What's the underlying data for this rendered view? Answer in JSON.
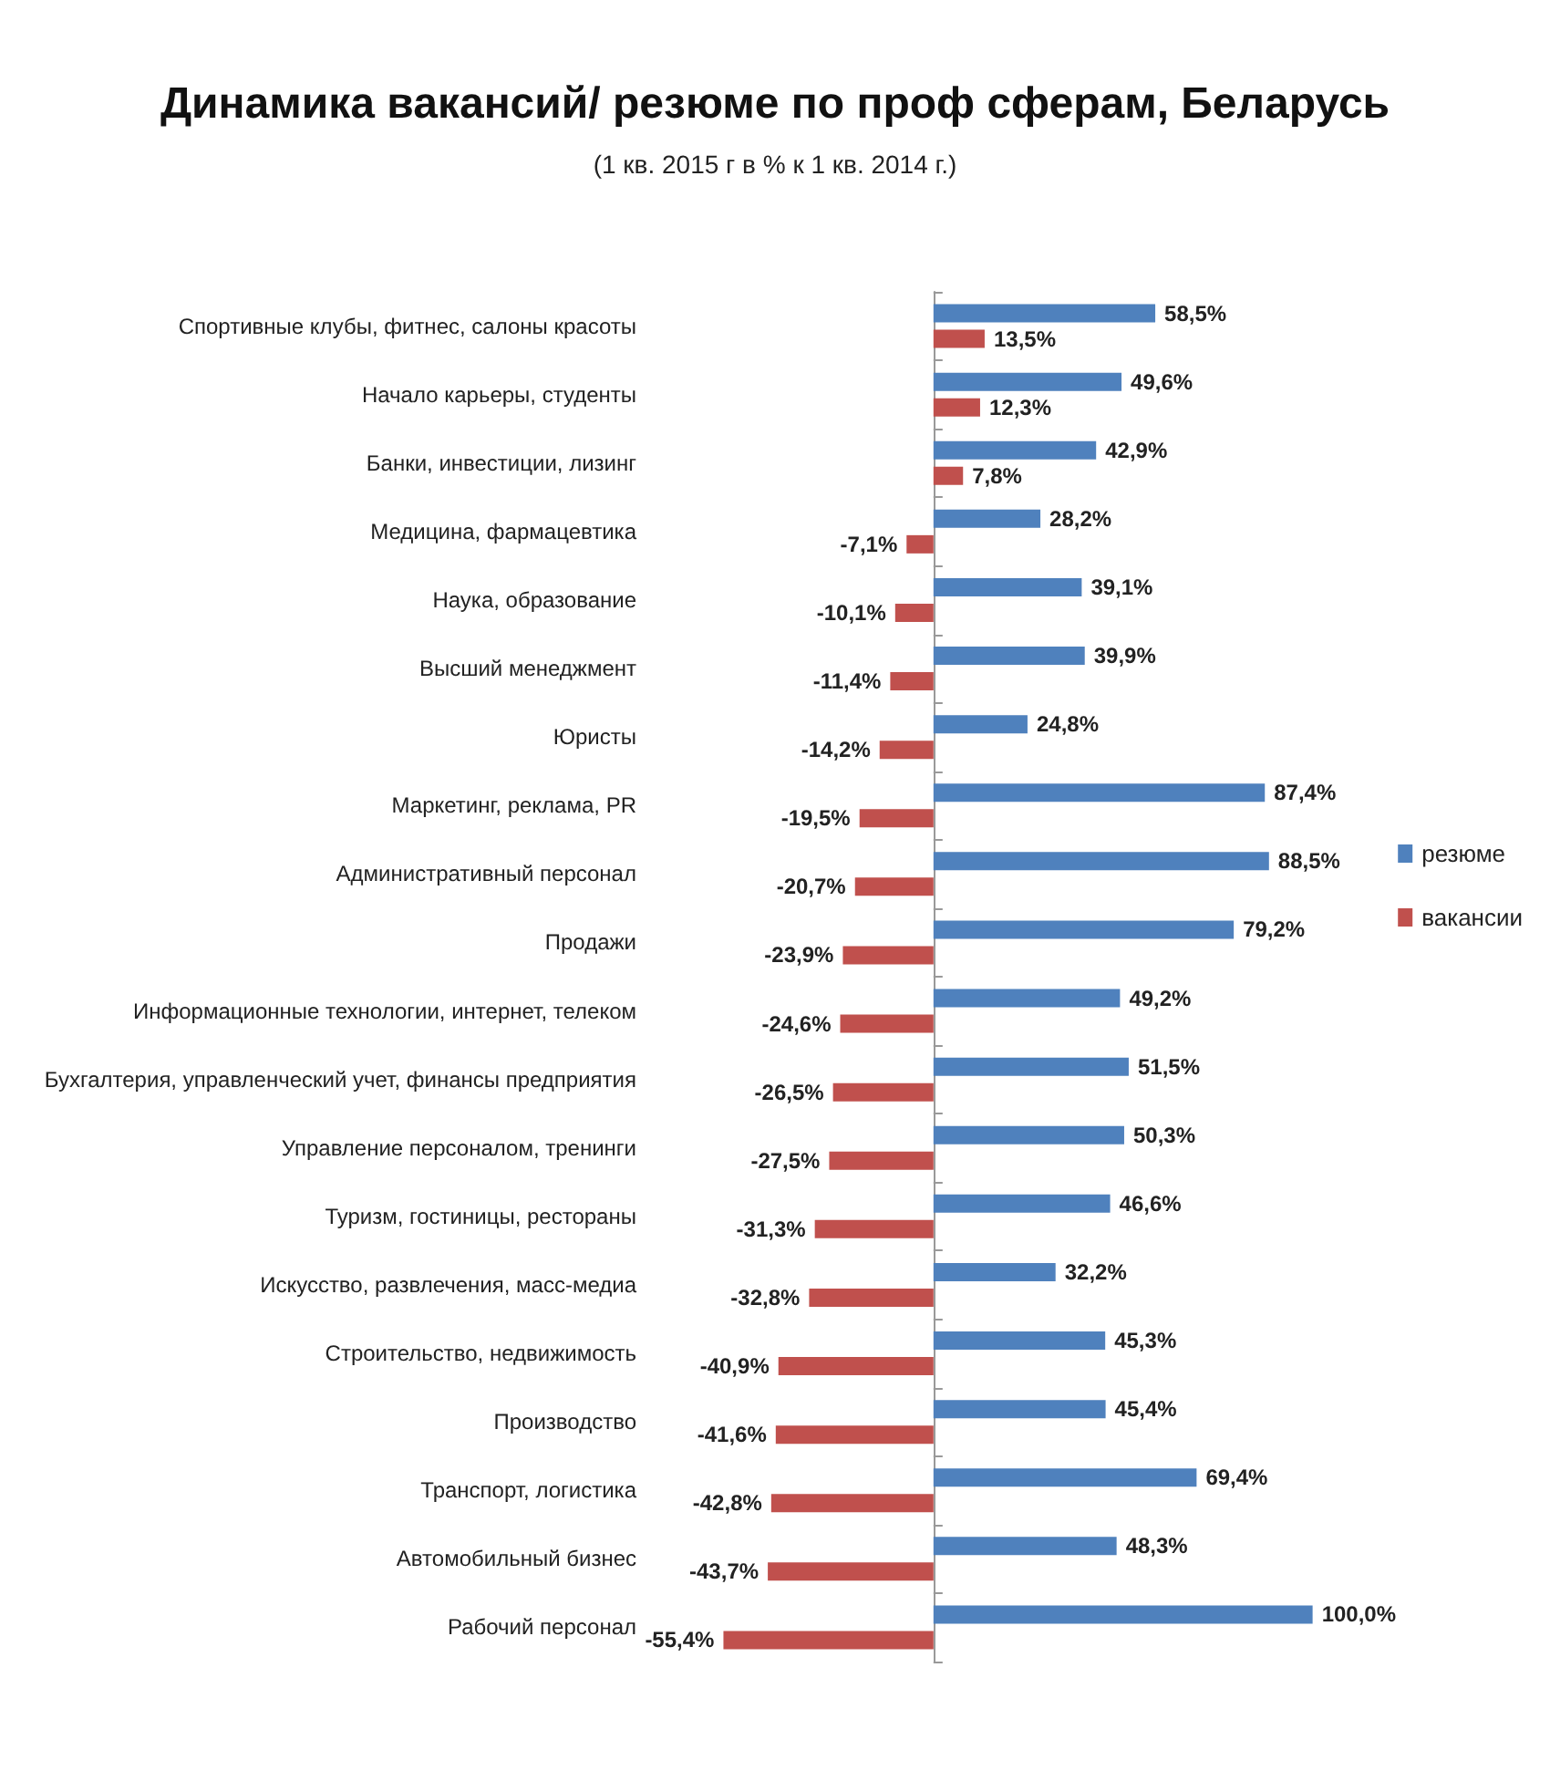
{
  "chart_data": {
    "type": "bar",
    "orientation": "horizontal",
    "title": "Динамика вакансий/ резюме по проф сферам, Беларусь",
    "subtitle": "(1 кв. 2015 г в % к 1 кв. 2014 г.)",
    "categories": [
      "Спортивные клубы, фитнес, салоны красоты",
      "Начало карьеры, студенты",
      "Банки, инвестиции, лизинг",
      "Медицина, фармацевтика",
      "Наука, образование",
      "Высший менеджмент",
      "Юристы",
      "Маркетинг, реклама, PR",
      "Административный персонал",
      "Продажи",
      "Информационные технологии, интернет, телеком",
      "Бухгалтерия, управленческий учет, финансы предприятия",
      "Управление персоналом, тренинги",
      "Туризм, гостиницы, рестораны",
      "Искусство, развлечения, масс-медиа",
      "Строительство, недвижимость",
      "Производство",
      "Транспорт, логистика",
      "Автомобильный бизнес",
      "Рабочий персонал"
    ],
    "series": [
      {
        "name": "резюме",
        "color": "#4f81bd",
        "values": [
          58.5,
          49.6,
          42.9,
          28.2,
          39.1,
          39.9,
          24.8,
          87.4,
          88.5,
          79.2,
          49.2,
          51.5,
          50.3,
          46.6,
          32.2,
          45.3,
          45.4,
          69.4,
          48.3,
          100.0
        ],
        "value_labels": [
          "58,5%",
          "49,6%",
          "42,9%",
          "28,2%",
          "39,1%",
          "39,9%",
          "24,8%",
          "87,4%",
          "88,5%",
          "79,2%",
          "49,2%",
          "51,5%",
          "50,3%",
          "46,6%",
          "32,2%",
          "45,3%",
          "45,4%",
          "69,4%",
          "48,3%",
          "100,0%"
        ]
      },
      {
        "name": "вакансии",
        "color": "#c0504d",
        "values": [
          13.5,
          12.3,
          7.8,
          -7.1,
          -10.1,
          -11.4,
          -14.2,
          -19.5,
          -20.7,
          -23.9,
          -24.6,
          -26.5,
          -27.5,
          -31.3,
          -32.8,
          -40.9,
          -41.6,
          -42.8,
          -43.7,
          -55.4
        ],
        "value_labels": [
          "13,5%",
          "12,3%",
          "7,8%",
          "-7,1%",
          "-10,1%",
          "-11,4%",
          "-14,2%",
          "-19,5%",
          "-20,7%",
          "-23,9%",
          "-24,6%",
          "-26,5%",
          "-27,5%",
          "-31,3%",
          "-32,8%",
          "-40,9%",
          "-41,6%",
          "-42,8%",
          "-43,7%",
          "-55,4%"
        ]
      }
    ],
    "legend": "right"
  }
}
